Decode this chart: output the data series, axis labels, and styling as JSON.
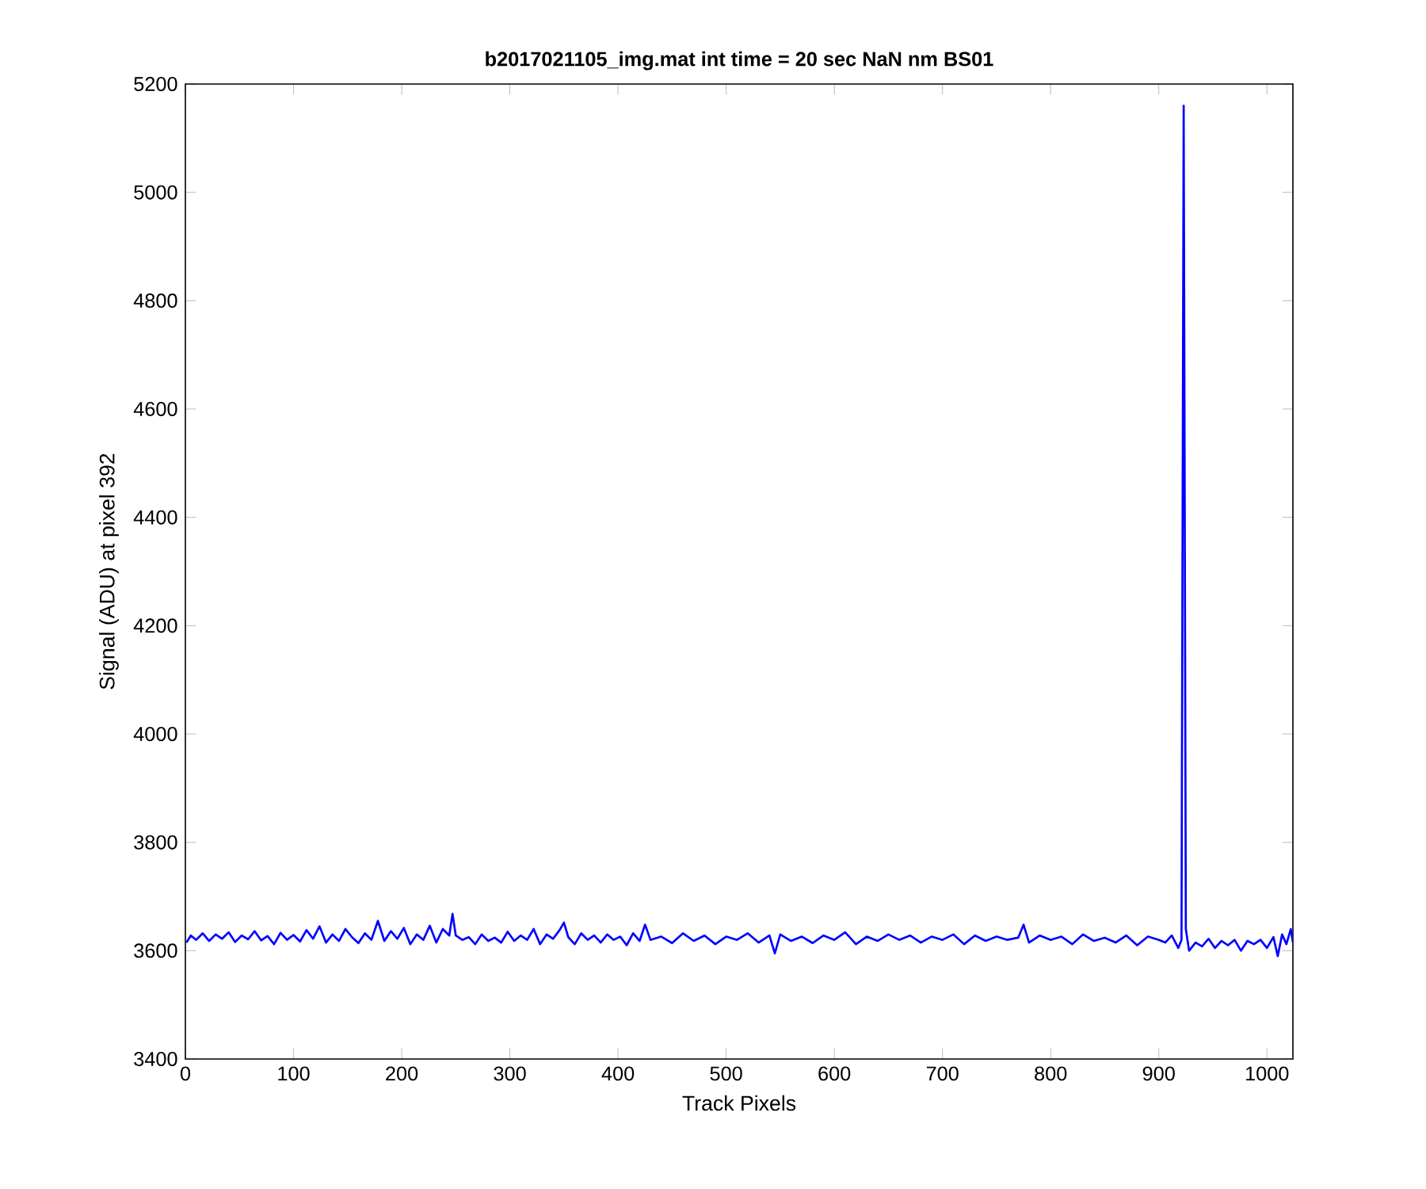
{
  "chart_data": {
    "type": "line",
    "title": "b2017021105_img.mat int time = 20 sec  NaN nm BS01",
    "xlabel": "Track Pixels",
    "ylabel": "Signal (ADU) at pixel 392",
    "x": [
      1,
      5,
      10,
      16,
      22,
      28,
      34,
      40,
      46,
      52,
      58,
      64,
      70,
      76,
      82,
      88,
      94,
      100,
      106,
      112,
      118,
      124,
      130,
      136,
      142,
      148,
      154,
      160,
      166,
      172,
      178,
      184,
      190,
      196,
      202,
      208,
      214,
      220,
      226,
      232,
      238,
      244,
      247,
      250,
      256,
      262,
      268,
      274,
      280,
      286,
      292,
      298,
      304,
      310,
      316,
      322,
      328,
      334,
      340,
      346,
      350,
      354,
      360,
      366,
      372,
      378,
      384,
      390,
      396,
      402,
      408,
      414,
      420,
      425,
      430,
      440,
      450,
      460,
      470,
      480,
      490,
      500,
      510,
      520,
      530,
      540,
      545,
      550,
      560,
      570,
      580,
      590,
      600,
      610,
      620,
      630,
      640,
      650,
      660,
      670,
      680,
      690,
      700,
      710,
      720,
      730,
      740,
      750,
      760,
      770,
      775,
      780,
      790,
      800,
      810,
      820,
      830,
      840,
      850,
      860,
      870,
      880,
      890,
      900,
      906,
      912,
      918,
      921,
      923,
      925,
      928,
      934,
      940,
      946,
      952,
      958,
      964,
      970,
      976,
      982,
      988,
      994,
      1000,
      1006,
      1010,
      1014,
      1018,
      1022,
      1024
    ],
    "series": [
      {
        "color": "#0000ff",
        "values": [
          3615,
          3628,
          3620,
          3632,
          3618,
          3630,
          3622,
          3634,
          3616,
          3628,
          3621,
          3636,
          3619,
          3627,
          3612,
          3633,
          3620,
          3629,
          3617,
          3638,
          3622,
          3645,
          3615,
          3630,
          3618,
          3640,
          3625,
          3614,
          3632,
          3620,
          3655,
          3618,
          3636,
          3622,
          3642,
          3612,
          3630,
          3620,
          3646,
          3615,
          3640,
          3628,
          3668,
          3628,
          3620,
          3625,
          3612,
          3630,
          3618,
          3624,
          3615,
          3635,
          3618,
          3628,
          3620,
          3640,
          3612,
          3630,
          3622,
          3638,
          3652,
          3625,
          3612,
          3632,
          3620,
          3628,
          3615,
          3630,
          3620,
          3626,
          3610,
          3632,
          3618,
          3648,
          3620,
          3626,
          3614,
          3632,
          3618,
          3628,
          3612,
          3626,
          3620,
          3632,
          3615,
          3628,
          3595,
          3630,
          3618,
          3626,
          3614,
          3628,
          3620,
          3634,
          3612,
          3626,
          3618,
          3630,
          3620,
          3628,
          3615,
          3626,
          3620,
          3630,
          3612,
          3628,
          3618,
          3626,
          3620,
          3624,
          3648,
          3615,
          3628,
          3620,
          3626,
          3612,
          3630,
          3618,
          3624,
          3615,
          3628,
          3610,
          3626,
          3620,
          3615,
          3628,
          3605,
          3620,
          5160,
          3640,
          3600,
          3615,
          3608,
          3622,
          3605,
          3618,
          3610,
          3620,
          3600,
          3618,
          3612,
          3620,
          3605,
          3625,
          3590,
          3630,
          3612,
          3640,
          3615
        ]
      }
    ],
    "xlim": [
      0,
      1024
    ],
    "ylim": [
      3400,
      5200
    ],
    "xticks": [
      0,
      100,
      200,
      300,
      400,
      500,
      600,
      700,
      800,
      900,
      1000
    ],
    "yticks": [
      3400,
      3600,
      3800,
      4000,
      4200,
      4400,
      4600,
      4800,
      5000,
      5200
    ],
    "marker": "none",
    "line_style": "solid"
  }
}
